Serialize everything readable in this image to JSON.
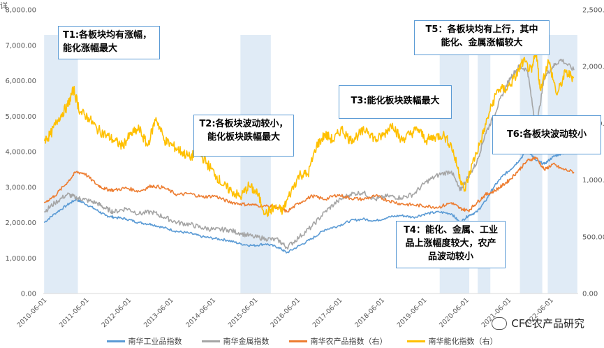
{
  "chart_data": {
    "type": "line",
    "title": "",
    "unit_label_left": "详",
    "y_left": {
      "ticks": [
        "0.00",
        "1,000.00",
        "2,000.00",
        "3,000.00",
        "4,000.00",
        "5,000.00",
        "6,000.00",
        "7,000.00",
        "8,000.00"
      ],
      "range": [
        0,
        8000
      ]
    },
    "y_right": {
      "ticks": [
        "0.00",
        "500.00",
        "1,000.00",
        "1,500.00",
        "2,000.00",
        "2,500.00"
      ],
      "range": [
        0,
        2500
      ]
    },
    "x_ticks": [
      "2010-06-01",
      "2011-06-01",
      "2012-06-01",
      "2013-06-01",
      "2014-06-01",
      "2015-06-01",
      "2016-06-01",
      "2017-06-01",
      "2018-06-01",
      "2019-06-01",
      "2020-06-01",
      "2021-06-01",
      "2022-06-01"
    ],
    "x_range": [
      2010.33,
      2023.0
    ],
    "shaded_periods": [
      [
        2010.35,
        2011.15
      ],
      [
        2015.0,
        2015.72
      ],
      [
        2019.72,
        2020.42
      ],
      [
        2020.62,
        2020.92
      ],
      [
        2021.62,
        2022.15
      ],
      [
        2022.28,
        2022.98
      ]
    ],
    "series": [
      {
        "name": "南华工业品指数",
        "axis": "left",
        "color": "#5b9bd5",
        "x": [
          2010.35,
          2010.6,
          2010.9,
          2011.1,
          2011.3,
          2011.6,
          2011.8,
          2012.0,
          2012.3,
          2012.6,
          2012.9,
          2013.2,
          2013.5,
          2013.8,
          2014.1,
          2014.4,
          2014.7,
          2015.0,
          2015.3,
          2015.6,
          2015.9,
          2016.1,
          2016.4,
          2016.7,
          2017.0,
          2017.3,
          2017.6,
          2017.9,
          2018.2,
          2018.5,
          2018.8,
          2019.1,
          2019.4,
          2019.7,
          2020.0,
          2020.2,
          2020.4,
          2020.6,
          2020.8,
          2021.0,
          2021.2,
          2021.4,
          2021.6,
          2021.8,
          2022.0,
          2022.2,
          2022.4,
          2022.6,
          2022.9
        ],
        "values": [
          2000,
          2250,
          2500,
          2650,
          2550,
          2350,
          2200,
          2150,
          2100,
          2000,
          1950,
          1850,
          1750,
          1700,
          1600,
          1550,
          1500,
          1400,
          1350,
          1400,
          1300,
          1150,
          1350,
          1550,
          1800,
          1900,
          2050,
          2100,
          2050,
          2150,
          2200,
          2150,
          2250,
          2300,
          2250,
          2000,
          2200,
          2300,
          2600,
          3000,
          3300,
          3500,
          3750,
          4050,
          3750,
          3650,
          3850,
          3950,
          4000
        ]
      },
      {
        "name": "南华金属指数",
        "axis": "left",
        "color": "#a5a5a5",
        "x": [
          2010.35,
          2010.6,
          2010.9,
          2011.1,
          2011.3,
          2011.6,
          2011.8,
          2012.0,
          2012.3,
          2012.6,
          2012.9,
          2013.2,
          2013.5,
          2013.8,
          2014.1,
          2014.4,
          2014.7,
          2015.0,
          2015.3,
          2015.6,
          2015.9,
          2016.1,
          2016.4,
          2016.7,
          2017.0,
          2017.3,
          2017.6,
          2017.9,
          2018.2,
          2018.5,
          2018.8,
          2019.1,
          2019.4,
          2019.7,
          2020.0,
          2020.2,
          2020.4,
          2020.6,
          2020.8,
          2021.0,
          2021.2,
          2021.4,
          2021.6,
          2021.8,
          2022.0,
          2022.2,
          2022.4,
          2022.6,
          2022.9
        ],
        "values": [
          2300,
          2550,
          2800,
          2700,
          2650,
          2550,
          2400,
          2300,
          2400,
          2250,
          2300,
          2150,
          2000,
          1950,
          1850,
          1800,
          1800,
          1700,
          1600,
          1550,
          1500,
          1300,
          1600,
          1900,
          2300,
          2600,
          2800,
          2850,
          2650,
          2750,
          2700,
          2800,
          3150,
          3350,
          3450,
          2900,
          3300,
          3700,
          4500,
          5000,
          5600,
          6100,
          6400,
          6300,
          4600,
          6100,
          6400,
          6600,
          6300
        ]
      },
      {
        "name": "南华农产品指数（右）",
        "axis": "right",
        "color": "#ed7d31",
        "x": [
          2010.35,
          2010.6,
          2010.9,
          2011.1,
          2011.3,
          2011.6,
          2011.8,
          2012.0,
          2012.3,
          2012.6,
          2012.9,
          2013.2,
          2013.5,
          2013.8,
          2014.1,
          2014.4,
          2014.7,
          2015.0,
          2015.3,
          2015.6,
          2015.9,
          2016.1,
          2016.4,
          2016.7,
          2017.0,
          2017.3,
          2017.6,
          2017.9,
          2018.2,
          2018.5,
          2018.8,
          2019.1,
          2019.4,
          2019.7,
          2020.0,
          2020.2,
          2020.4,
          2020.6,
          2020.8,
          2021.0,
          2021.2,
          2021.4,
          2021.6,
          2021.8,
          2022.0,
          2022.2,
          2022.4,
          2022.6,
          2022.9
        ],
        "values": [
          800,
          860,
          980,
          1070,
          1060,
          960,
          920,
          910,
          930,
          900,
          950,
          930,
          870,
          880,
          850,
          860,
          810,
          790,
          780,
          770,
          760,
          720,
          800,
          860,
          830,
          870,
          840,
          830,
          860,
          820,
          790,
          780,
          770,
          760,
          800,
          750,
          730,
          800,
          870,
          900,
          950,
          1010,
          1090,
          1170,
          1200,
          1090,
          1140,
          1100,
          1070
        ]
      },
      {
        "name": "南华能化指数（右）",
        "axis": "right",
        "color": "#ffc000",
        "x": [
          2010.35,
          2010.5,
          2010.7,
          2010.9,
          2011.05,
          2011.2,
          2011.4,
          2011.6,
          2011.8,
          2012.0,
          2012.2,
          2012.4,
          2012.6,
          2012.8,
          2013.0,
          2013.2,
          2013.4,
          2013.6,
          2013.8,
          2014.0,
          2014.2,
          2014.4,
          2014.6,
          2014.8,
          2015.0,
          2015.2,
          2015.4,
          2015.6,
          2015.8,
          2016.0,
          2016.2,
          2016.4,
          2016.6,
          2016.8,
          2017.0,
          2017.2,
          2017.4,
          2017.6,
          2017.8,
          2018.0,
          2018.2,
          2018.4,
          2018.6,
          2018.8,
          2019.0,
          2019.2,
          2019.4,
          2019.6,
          2019.8,
          2020.0,
          2020.15,
          2020.3,
          2020.5,
          2020.7,
          2020.9,
          2021.1,
          2021.3,
          2021.5,
          2021.7,
          2021.9,
          2022.0,
          2022.1,
          2022.3,
          2022.5,
          2022.7,
          2022.9
        ],
        "values": [
          1350,
          1400,
          1550,
          1650,
          1800,
          1600,
          1550,
          1450,
          1400,
          1350,
          1300,
          1400,
          1450,
          1300,
          1550,
          1350,
          1300,
          1250,
          1200,
          1250,
          1150,
          1050,
          950,
          900,
          850,
          950,
          880,
          700,
          760,
          730,
          900,
          1050,
          1050,
          1300,
          1400,
          1350,
          1450,
          1350,
          1400,
          1450,
          1350,
          1400,
          1500,
          1350,
          1400,
          1450,
          1350,
          1380,
          1400,
          1300,
          1100,
          900,
          1150,
          1350,
          1600,
          1800,
          1800,
          1900,
          2050,
          1950,
          2150,
          1800,
          2050,
          1750,
          1950,
          1900
        ]
      }
    ],
    "annotations": [
      {
        "id": "T1",
        "text": "T1:各板块均有涨幅，\n能化涨幅最大"
      },
      {
        "id": "T2",
        "text": "T2:各板块波动较小，\n能化板块跌幅最大"
      },
      {
        "id": "T3",
        "text": "T3:能化板块跌幅最大"
      },
      {
        "id": "T4",
        "text": "T4：能化、金属、工业\n品上涨幅度较大，农产\n品波动较小"
      },
      {
        "id": "T5",
        "text": "T5：各板块均有上行，其中\n能化、金属涨幅较大"
      },
      {
        "id": "T6",
        "text": "T6:各板块波动较小"
      }
    ]
  },
  "watermark": "CFC农产品研究"
}
